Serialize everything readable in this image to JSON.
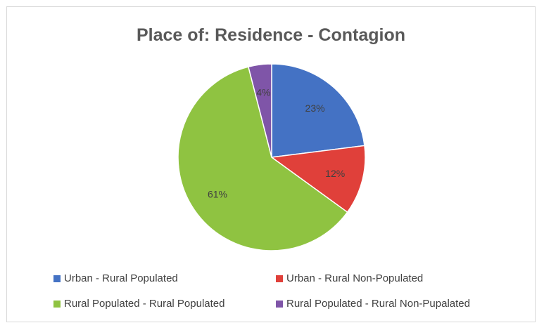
{
  "chart_data": {
    "type": "pie",
    "title": "Place of: Residence - Contagion",
    "slices": [
      {
        "label": "Urban - Rural Populated",
        "value": 23,
        "display": "23%",
        "color": "#4472c4"
      },
      {
        "label": "Urban - Rural Non-Populated",
        "value": 12,
        "display": "12%",
        "color": "#e0403a"
      },
      {
        "label": "Rural Populated - Rural Populated",
        "value": 61,
        "display": "61%",
        "color": "#8fc341"
      },
      {
        "label": "Rural Populated - Rural Non-Pupalated",
        "value": 4,
        "display": "4%",
        "color": "#7f55a8"
      }
    ],
    "legend_position": "bottom"
  }
}
